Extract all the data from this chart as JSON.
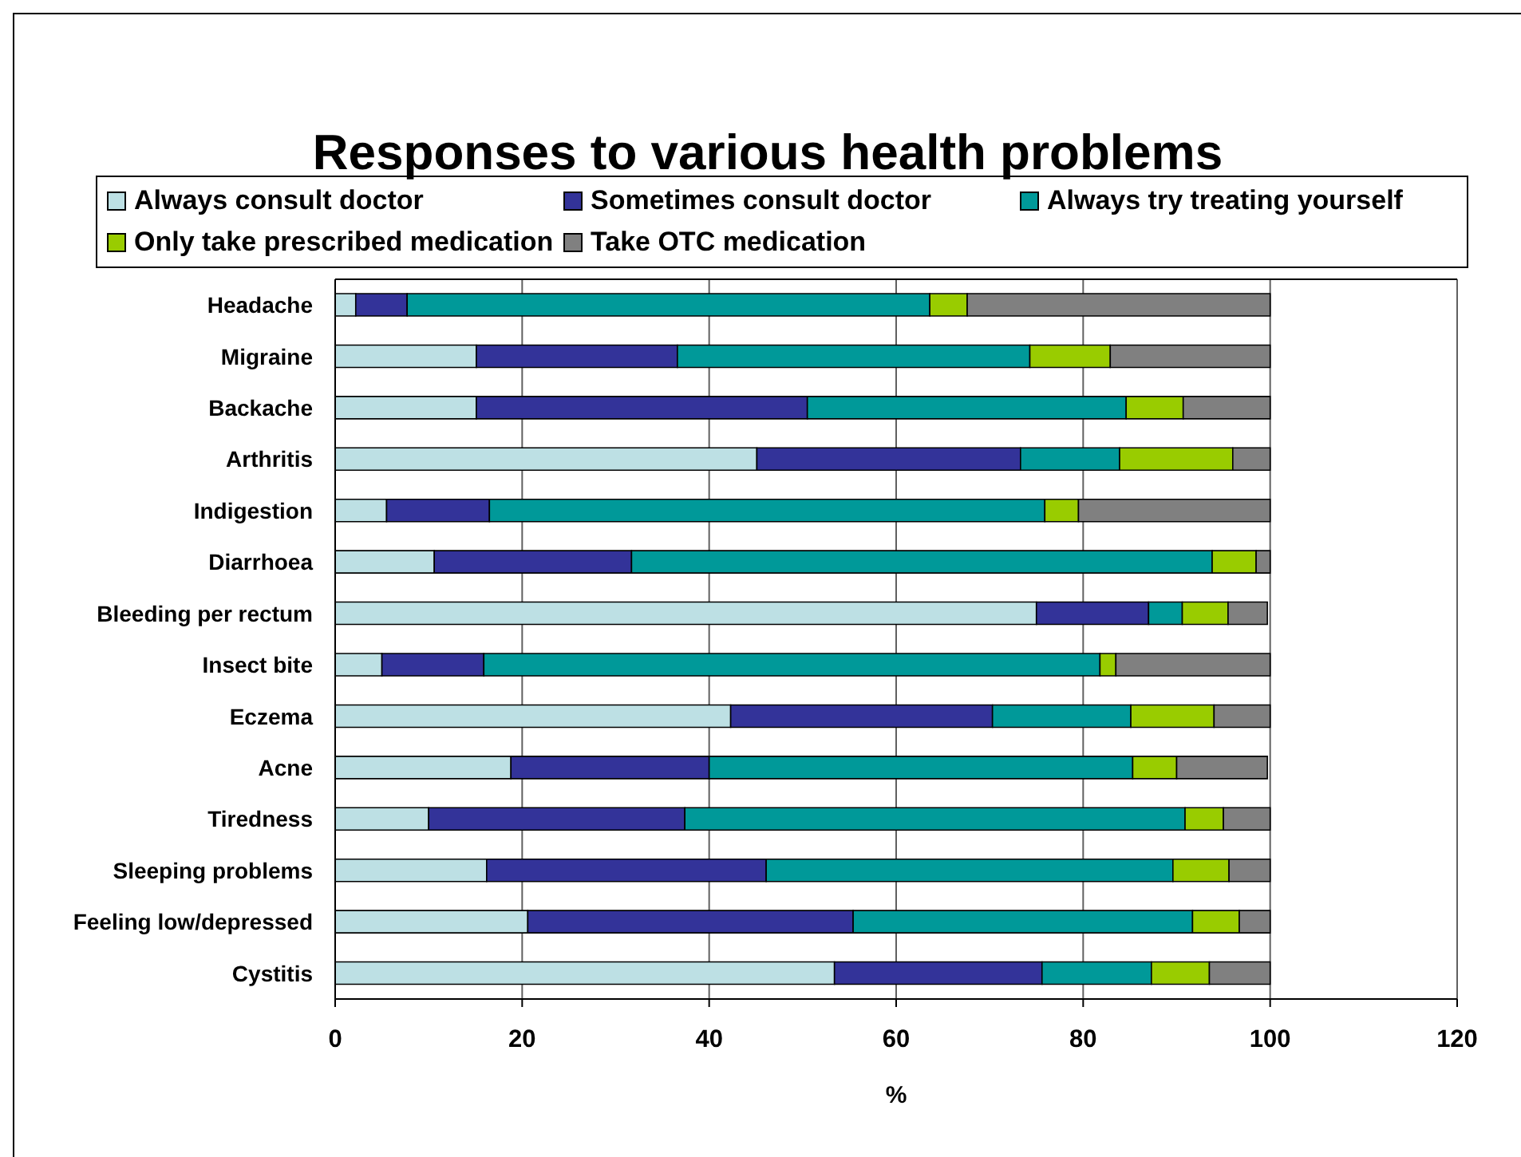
{
  "chart_data": {
    "type": "bar",
    "orientation": "horizontal",
    "stacked": true,
    "title": "Responses to various health problems",
    "xlabel": "%",
    "categories": [
      "Headache",
      "Migraine",
      "Backache",
      "Arthritis",
      "Indigestion",
      "Diarrhoea",
      "Bleeding per rectum",
      "Insect bite",
      "Eczema",
      "Acne",
      "Tiredness",
      "Sleeping problems",
      "Feeling low/depressed",
      "Cystitis"
    ],
    "series": [
      {
        "name": "Always consult doctor",
        "color": "#bde0e4",
        "values": [
          2.2,
          15.1,
          15.1,
          45.1,
          5.5,
          10.6,
          75.0,
          5.0,
          42.3,
          18.8,
          10.0,
          16.2,
          20.6,
          53.4
        ]
      },
      {
        "name": "Sometimes consult doctor",
        "color": "#333399",
        "values": [
          5.5,
          21.5,
          35.4,
          28.2,
          11.0,
          21.1,
          12.0,
          10.9,
          28.0,
          21.2,
          27.4,
          29.9,
          34.8,
          22.2
        ]
      },
      {
        "name": "Always try treating yourself",
        "color": "#009999",
        "values": [
          55.9,
          37.7,
          34.1,
          10.6,
          59.4,
          62.1,
          3.6,
          65.9,
          14.8,
          45.3,
          53.5,
          43.5,
          36.3,
          11.7
        ]
      },
      {
        "name": "Only take prescribed medication",
        "color": "#99cc00",
        "values": [
          4.0,
          8.6,
          6.1,
          12.1,
          3.6,
          4.7,
          4.9,
          1.7,
          8.9,
          4.7,
          4.1,
          6.0,
          5.0,
          6.2
        ]
      },
      {
        "name": "Take OTC medication",
        "color": "#808080",
        "values": [
          32.4,
          17.1,
          9.3,
          4.0,
          20.5,
          1.5,
          4.2,
          16.5,
          6.0,
          9.7,
          5.0,
          4.4,
          3.3,
          6.5
        ]
      }
    ],
    "xlim": [
      0,
      120
    ],
    "xticks": [
      0,
      20,
      40,
      60,
      80,
      100,
      120
    ],
    "grid": "x",
    "legend": "top"
  }
}
